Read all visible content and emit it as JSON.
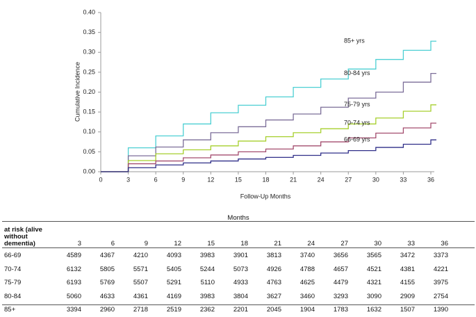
{
  "chart_data": {
    "type": "step",
    "y_label": "Cumulative Incidence",
    "x_label": "Follow-Up Months",
    "x": [
      0,
      3,
      6,
      9,
      12,
      15,
      18,
      21,
      24,
      27,
      30,
      33,
      36
    ],
    "xlim": [
      0,
      36
    ],
    "xticks": [
      0,
      3,
      6,
      9,
      12,
      15,
      18,
      21,
      24,
      27,
      30,
      33,
      36
    ],
    "ylim": [
      0,
      0.4
    ],
    "yticks": [
      {
        "value": 0,
        "label": "0.00"
      },
      {
        "value": 0.05,
        "label": "0.05"
      },
      {
        "value": 0.1,
        "label": "0.10"
      },
      {
        "value": 0.15,
        "label": "0.15"
      },
      {
        "value": 0.2,
        "label": "0.20"
      },
      {
        "value": 0.25,
        "label": "0.25"
      },
      {
        "value": 0.3,
        "label": "0.30"
      },
      {
        "value": 0.35,
        "label": "0.35"
      },
      {
        "value": 0.4,
        "label": "0.40"
      }
    ],
    "grid": false,
    "series": [
      {
        "name": "85+ yrs",
        "color": "#4ccfd3",
        "values": [
          0,
          0.06,
          0.09,
          0.12,
          0.148,
          0.167,
          0.188,
          0.212,
          0.233,
          0.258,
          0.282,
          0.305,
          0.328
        ]
      },
      {
        "name": "80-84 yrs",
        "color": "#7b6d98",
        "values": [
          0,
          0.04,
          0.062,
          0.08,
          0.098,
          0.113,
          0.13,
          0.145,
          0.162,
          0.185,
          0.2,
          0.225,
          0.247
        ]
      },
      {
        "name": "75-79 yrs",
        "color": "#a6cf2c",
        "values": [
          0,
          0.028,
          0.045,
          0.055,
          0.065,
          0.077,
          0.088,
          0.098,
          0.108,
          0.12,
          0.135,
          0.152,
          0.168
        ]
      },
      {
        "name": "70-74 yrs",
        "color": "#a34c6e",
        "values": [
          0,
          0.02,
          0.027,
          0.035,
          0.042,
          0.05,
          0.057,
          0.065,
          0.075,
          0.085,
          0.097,
          0.11,
          0.122
        ]
      },
      {
        "name": "66-69 yrs",
        "color": "#2f2e88",
        "values": [
          0,
          0.01,
          0.017,
          0.022,
          0.027,
          0.032,
          0.036,
          0.041,
          0.047,
          0.053,
          0.061,
          0.069,
          0.08
        ]
      }
    ]
  },
  "table": {
    "title": "Months",
    "header": [
      "at risk (alive without dementia)",
      3,
      6,
      9,
      12,
      15,
      18,
      21,
      24,
      27,
      30,
      33,
      36
    ],
    "rows": [
      [
        "66-69",
        4589,
        4367,
        4210,
        4093,
        3983,
        3901,
        3813,
        3740,
        3656,
        3565,
        3472,
        3373
      ],
      [
        "70-74",
        6132,
        5805,
        5571,
        5405,
        5244,
        5073,
        4926,
        4788,
        4657,
        4521,
        4381,
        4221
      ],
      [
        "75-79",
        6193,
        5769,
        5507,
        5291,
        5110,
        4933,
        4763,
        4625,
        4479,
        4321,
        4155,
        3975
      ],
      [
        "80-84",
        5060,
        4633,
        4361,
        4169,
        3983,
        3804,
        3627,
        3460,
        3293,
        3090,
        2909,
        2754
      ],
      [
        "85+",
        3394,
        2960,
        2718,
        2519,
        2362,
        2201,
        2045,
        1904,
        1783,
        1632,
        1507,
        1390
      ]
    ]
  }
}
